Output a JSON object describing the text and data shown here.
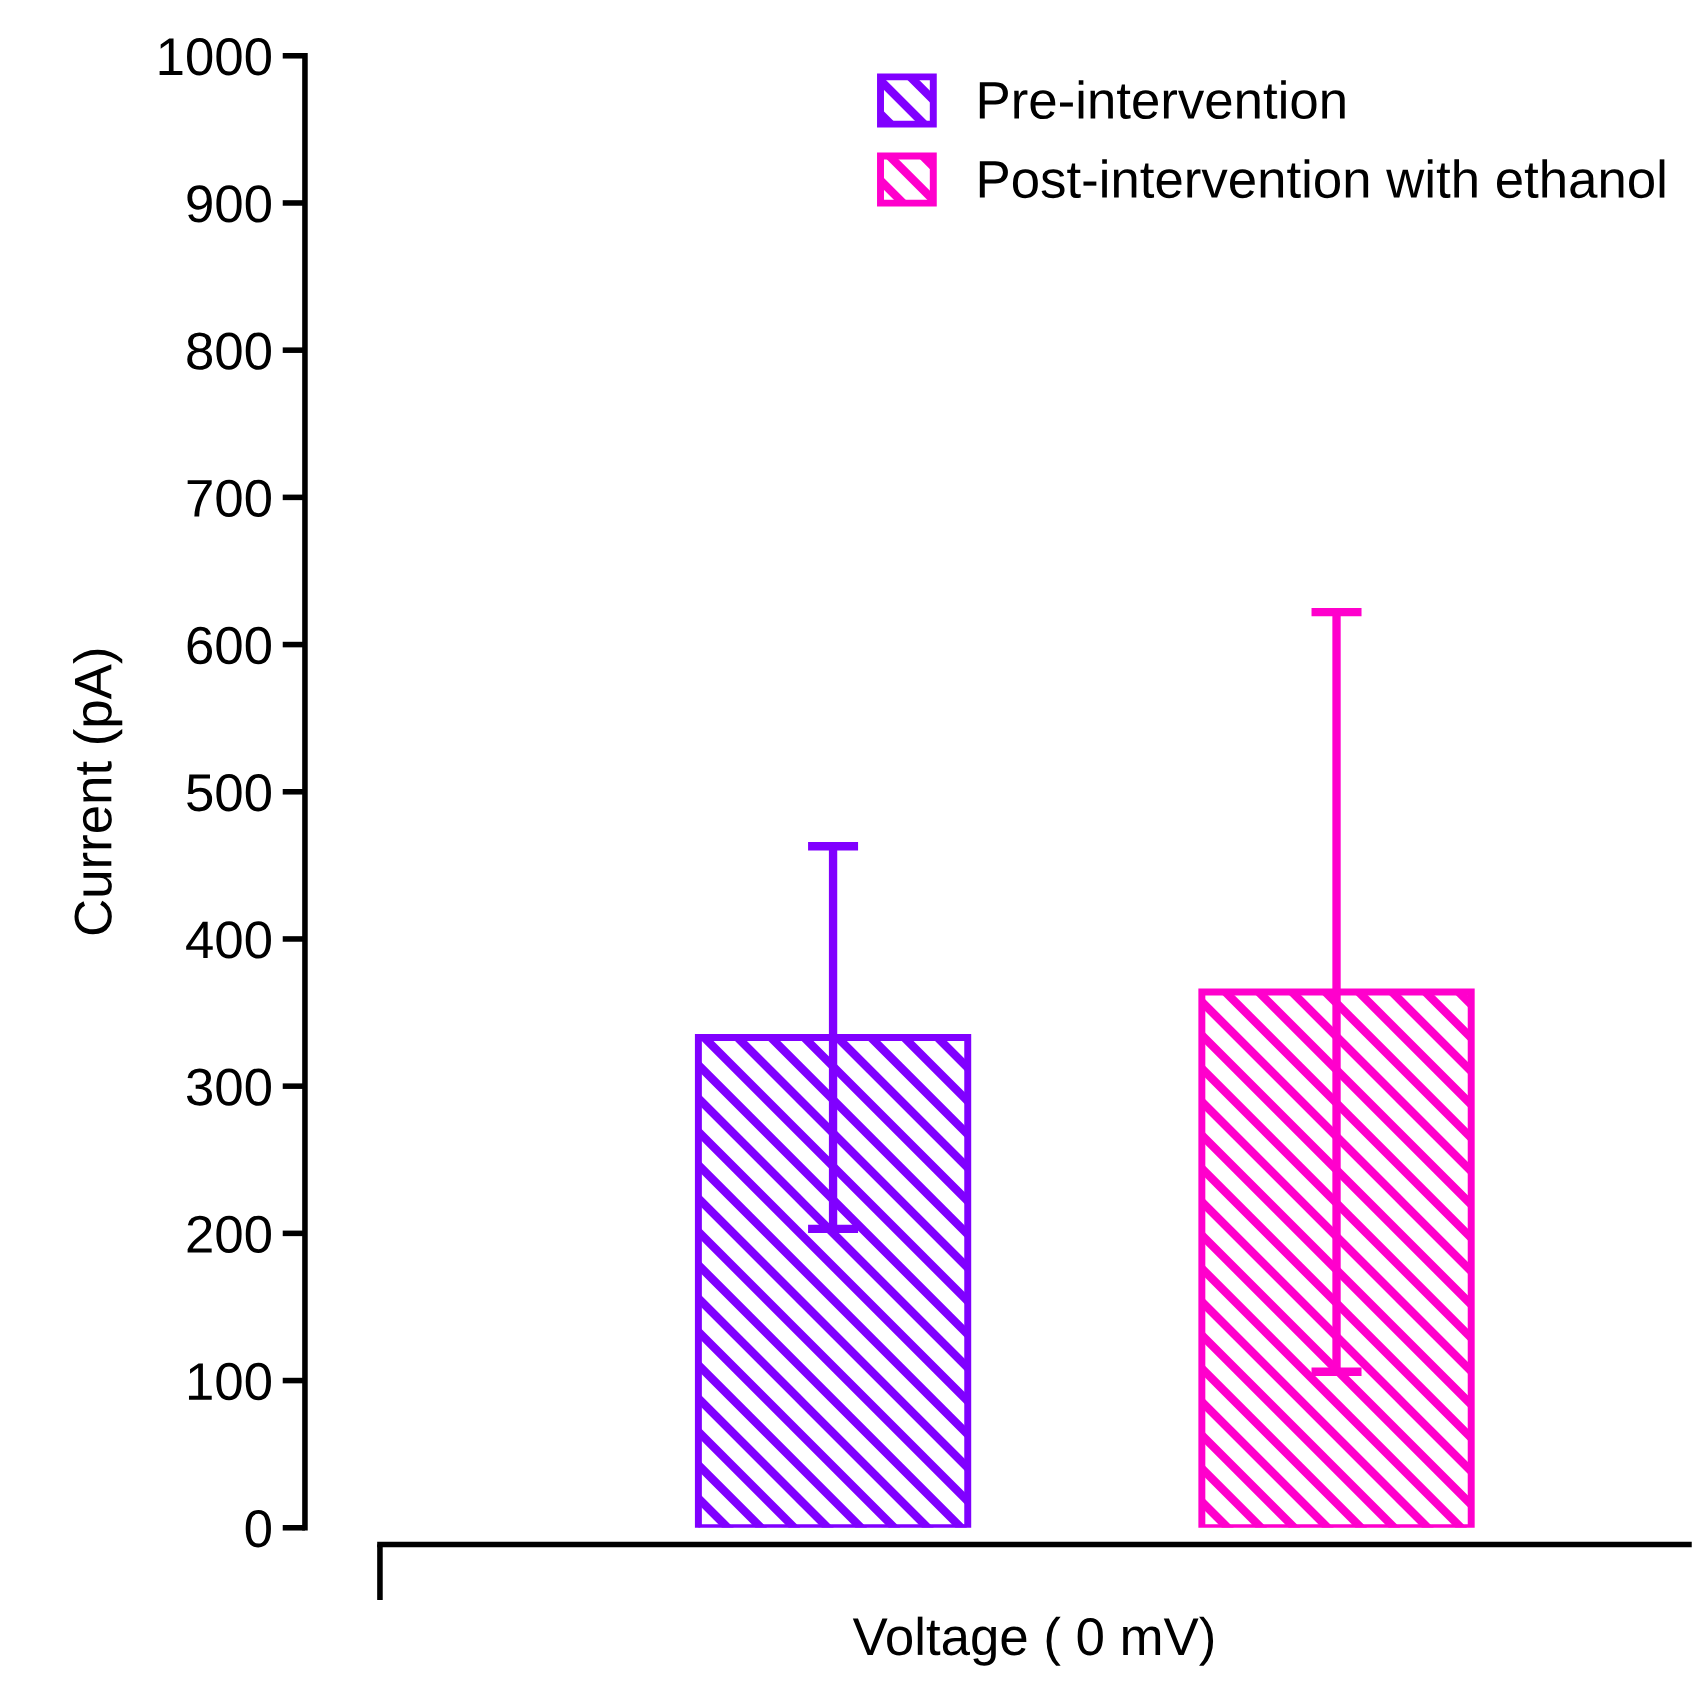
{
  "chart_data": {
    "type": "bar",
    "xlabel": "Voltage ( 0 mV)",
    "ylabel": "Current (pA)",
    "categories": [
      null,
      null
    ],
    "stacked": true,
    "series": [
      {
        "name": "Pre-intervention",
        "color": "#8000ff",
        "values": [
          333,
          null
        ],
        "errors": [
          130,
          null
        ]
      },
      {
        "name": "Post-intervention with ethanol",
        "color": "#ff00cc",
        "values": [
          null,
          364
        ],
        "errors": [
          null,
          258
        ]
      }
    ],
    "ylim": [
      0,
      1000
    ],
    "yticks": [
      0,
      100,
      200,
      300,
      400,
      500,
      600,
      700,
      800,
      900,
      1000
    ],
    "grid": false,
    "legend": "top right",
    "tick_labels": "y"
  }
}
